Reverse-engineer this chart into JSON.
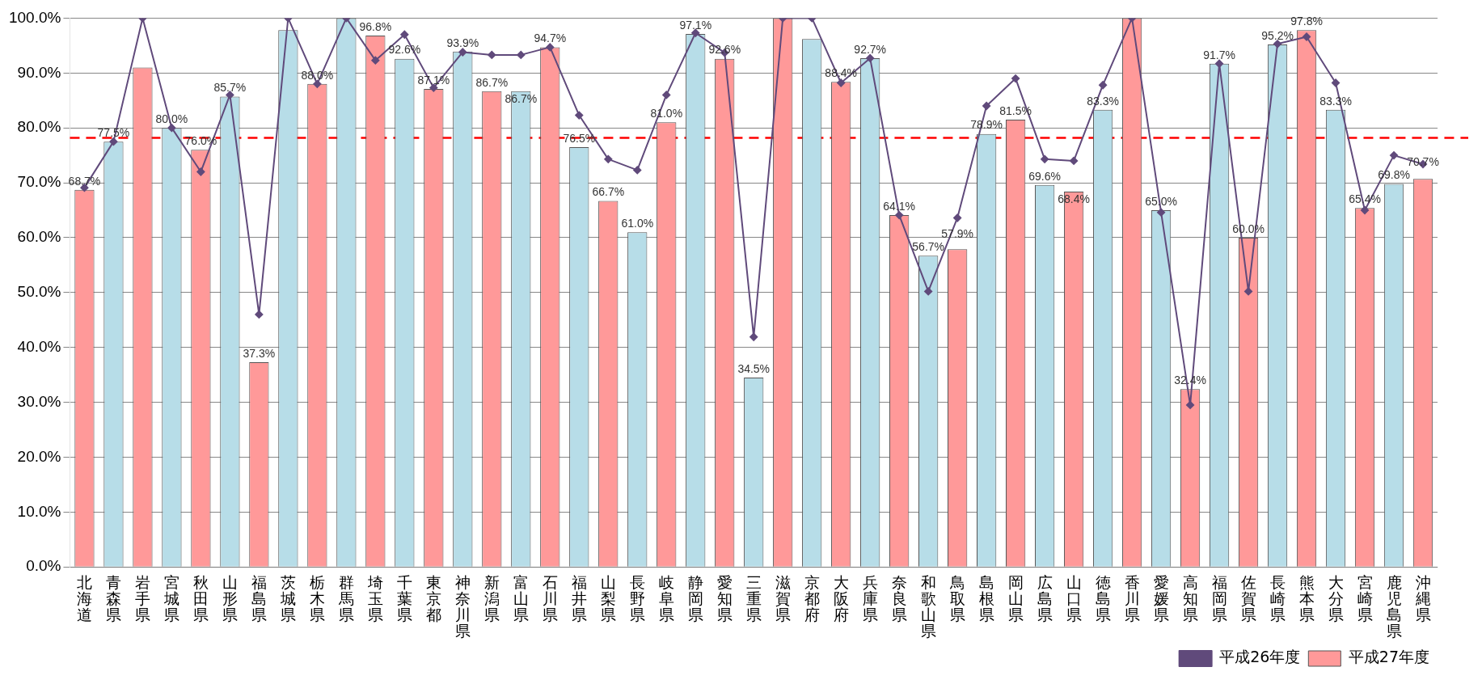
{
  "chart_data": {
    "type": "bar",
    "categories": [
      "北海道",
      "青森県",
      "岩手県",
      "宮城県",
      "秋田県",
      "山形県",
      "福島県",
      "茨城県",
      "栃木県",
      "群馬県",
      "埼玉県",
      "千葉県",
      "東京都",
      "神奈川県",
      "新潟県",
      "富山県",
      "石川県",
      "福井県",
      "山梨県",
      "長野県",
      "岐阜県",
      "静岡県",
      "愛知県",
      "三重県",
      "滋賀県",
      "京都府",
      "大阪府",
      "兵庫県",
      "奈良県",
      "和歌山県",
      "鳥取県",
      "島根県",
      "岡山県",
      "広島県",
      "山口県",
      "徳島県",
      "香川県",
      "愛媛県",
      "高知県",
      "福岡県",
      "佐賀県",
      "長崎県",
      "熊本県",
      "大分県",
      "宮崎県",
      "鹿児島県",
      "沖縄県"
    ],
    "series": [
      {
        "name": "平成27年度",
        "color": "#ff9999",
        "colors": [
          "#ff9999",
          "#b7dde8",
          "#ff9999",
          "#b7dde8",
          "#ff9999",
          "#b7dde8",
          "#ff9999",
          "#b7dde8",
          "#ff9999",
          "#b7dde8",
          "#ff9999",
          "#b7dde8",
          "#ff9999",
          "#b7dde8",
          "#ff9999",
          "#b7dde8",
          "#ff9999",
          "#b7dde8",
          "#ff9999",
          "#b7dde8",
          "#ff9999",
          "#b7dde8",
          "#ff9999",
          "#b7dde8",
          "#ff9999",
          "#b7dde8",
          "#ff9999",
          "#b7dde8",
          "#ff9999",
          "#b7dde8",
          "#ff9999",
          "#b7dde8",
          "#ff9999",
          "#b7dde8",
          "#ff9999",
          "#b7dde8",
          "#ff9999",
          "#b7dde8",
          "#ff9999",
          "#b7dde8",
          "#ff9999",
          "#b7dde8",
          "#ff9999",
          "#b7dde8",
          "#ff9999",
          "#b7dde8",
          "#ff9999"
        ],
        "values": [
          68.7,
          77.5,
          91.0,
          80.0,
          76.0,
          85.7,
          37.3,
          97.8,
          88.0,
          100,
          96.8,
          92.6,
          87.1,
          93.9,
          86.7,
          86.7,
          94.7,
          76.5,
          66.7,
          61.0,
          81.0,
          97.1,
          92.6,
          34.5,
          100,
          96.2,
          88.4,
          92.7,
          64.1,
          56.7,
          57.9,
          78.9,
          81.5,
          69.6,
          68.4,
          83.3,
          100,
          65.0,
          32.4,
          91.7,
          60.0,
          95.2,
          97.8,
          83.3,
          65.4,
          69.8,
          70.7
        ],
        "value_labels": [
          "68.7%",
          "77.5%",
          null,
          "80.0%",
          "76.0%",
          "85.7%",
          "37.3%",
          null,
          "88.0%",
          null,
          "96.8%",
          "92.6%",
          "87.1%",
          "93.9%",
          "86.7%",
          "86.7%",
          "94.7%",
          "76.5%",
          "66.7%",
          "61.0%",
          "81.0%",
          "97.1%",
          "92.6%",
          "34.5%",
          null,
          null,
          "88.4%",
          "92.7%",
          "64.1%",
          "56.7%",
          "57.9%",
          "78.9%",
          "81.5%",
          "69.6%",
          "68.4%",
          "83.3%",
          null,
          "65.0%",
          "32.4%",
          "91.7%",
          "60.0%",
          "95.2%",
          "97.8%",
          "83.3%",
          "65.4%",
          "69.8%",
          "70.7%"
        ]
      },
      {
        "name": "平成26年度",
        "type": "line",
        "color": "#604a7b",
        "marker": "diamond",
        "values": [
          69.1,
          77.5,
          100,
          80,
          72,
          86,
          46,
          100,
          88,
          100,
          92.3,
          97,
          87.3,
          93.8,
          93.3,
          93.3,
          94.7,
          82.3,
          74.3,
          72.3,
          86,
          97.3,
          93.7,
          41.9,
          100,
          100,
          88.2,
          92.7,
          64.1,
          50.2,
          63.6,
          84,
          89,
          74.3,
          74,
          87.8,
          100,
          64.6,
          29.5,
          91.7,
          50.2,
          95.3,
          96.6,
          88.2,
          65,
          75,
          73.4
        ]
      }
    ],
    "ylim": [
      0,
      100
    ],
    "yticks": [
      {
        "value": 0,
        "label": "0.0%"
      },
      {
        "value": 10,
        "label": "10.0%"
      },
      {
        "value": 20,
        "label": "20.0%"
      },
      {
        "value": 30,
        "label": "30.0%"
      },
      {
        "value": 40,
        "label": "40.0%"
      },
      {
        "value": 50,
        "label": "50.0%"
      },
      {
        "value": 60,
        "label": "60.0%"
      },
      {
        "value": 70,
        "label": "70.0%"
      },
      {
        "value": 80,
        "label": "80.0%"
      },
      {
        "value": 90,
        "label": "90.0%"
      },
      {
        "value": 100,
        "label": "100.0%"
      }
    ],
    "grid": "y",
    "legend": "bottom right",
    "ref_lines": [
      {
        "axis": "y",
        "value": 78.2,
        "color": "#ff0000",
        "line_style": "dashed"
      }
    ]
  }
}
